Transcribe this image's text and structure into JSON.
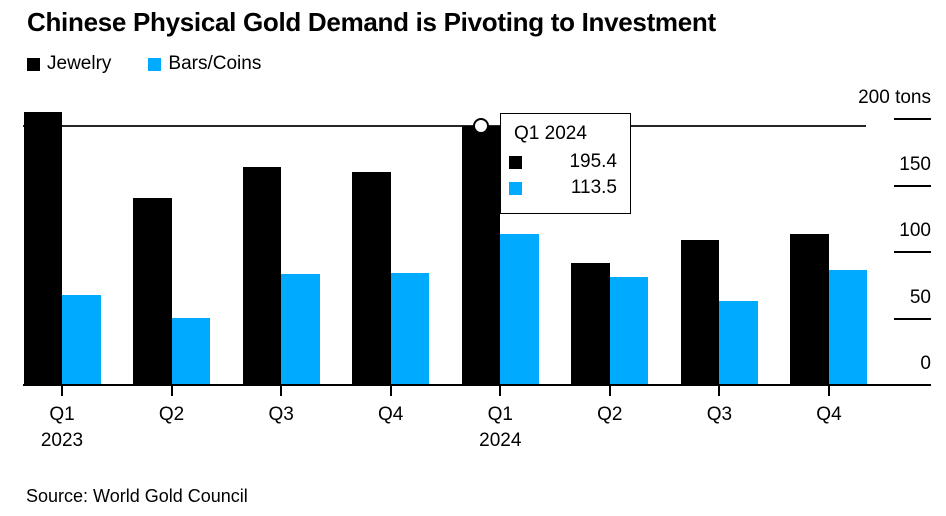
{
  "title": "Chinese Physical Gold Demand is Pivoting to Investment",
  "source_note": "Source: World Gold Council",
  "colors": {
    "jewelry": "#000000",
    "bars_coins": "#00AAFF",
    "axis": "#000000",
    "ref_line": "#262626",
    "background": "#ffffff"
  },
  "legend": [
    {
      "label": "Jewelry",
      "color": "#000000"
    },
    {
      "label": "Bars/Coins",
      "color": "#00AAFF"
    }
  ],
  "tooltip": {
    "title": "Q1 2024",
    "rows": [
      {
        "series": "Jewelry",
        "color": "#000000",
        "value": "195.4"
      },
      {
        "series": "Bars/Coins",
        "color": "#00AAFF",
        "value": "113.5"
      }
    ]
  },
  "chart_data": {
    "type": "bar",
    "title": "Chinese Physical Gold Demand is Pivoting to Investment",
    "categories": [
      "Q1 2023",
      "Q2 2023",
      "Q3 2023",
      "Q4 2023",
      "Q1 2024",
      "Q2 2024",
      "Q3 2024",
      "Q4 2024"
    ],
    "x_tick_labels": [
      "Q1",
      "Q2",
      "Q3",
      "Q4",
      "Q1",
      "Q2",
      "Q3",
      "Q4"
    ],
    "x_year_labels": [
      {
        "index": 0,
        "label": "2023"
      },
      {
        "index": 4,
        "label": "2024"
      }
    ],
    "series": [
      {
        "name": "Jewelry",
        "color": "#000000",
        "values": [
          205.5,
          141,
          164,
          160.5,
          195.4,
          92,
          109,
          114
        ]
      },
      {
        "name": "Bars/Coins",
        "color": "#00AAFF",
        "values": [
          68,
          50.5,
          83.5,
          84.5,
          113.5,
          81.5,
          63.5,
          86.5
        ]
      }
    ],
    "unit": "tons",
    "y_ticks": [
      0,
      50,
      100,
      150,
      200
    ],
    "y_tick_labels": [
      "0",
      "50",
      "100",
      "150",
      "200 tons"
    ],
    "ylim": [
      0,
      214
    ],
    "y_axis_side": "right",
    "grid": false,
    "legend_position": "top-left",
    "highlight": {
      "category": "Q1 2024",
      "index": 4,
      "ref_value": 195.4,
      "marker": "white-circle",
      "note": "horizontal reference line across plot at jewelry value of Q1 2024"
    }
  }
}
